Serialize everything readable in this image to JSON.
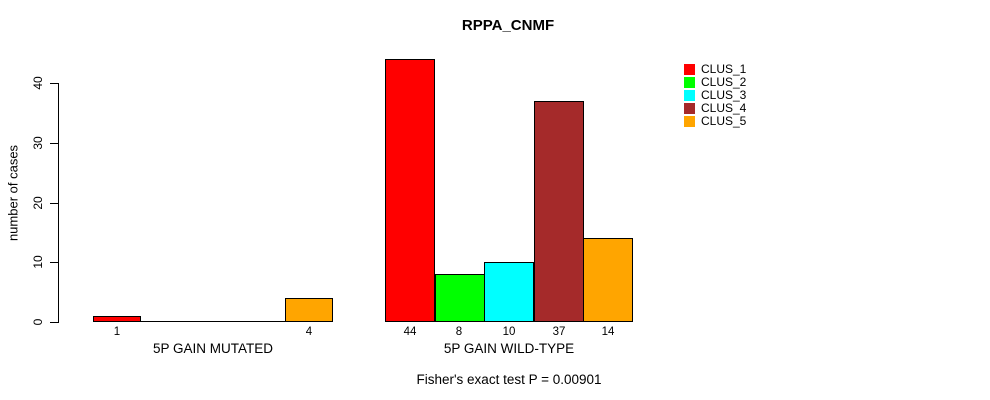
{
  "title": "RPPA_CNMF",
  "caption": "Fisher's exact test P = 0.00901",
  "y_axis": {
    "label": "number of cases",
    "ticks": [
      0,
      10,
      20,
      30,
      40
    ]
  },
  "legend": {
    "entries": [
      {
        "label": "CLUS_1",
        "color": "#FF0000"
      },
      {
        "label": "CLUS_2",
        "color": "#00FF00"
      },
      {
        "label": "CLUS_3",
        "color": "#00FFFF"
      },
      {
        "label": "CLUS_4",
        "color": "#A52A2A"
      },
      {
        "label": "CLUS_5",
        "color": "#FFA500"
      }
    ]
  },
  "chart_data": {
    "type": "bar",
    "title": "RPPA_CNMF",
    "xlabel": "",
    "ylabel": "number of cases",
    "ylim": [
      0,
      44
    ],
    "yticks": [
      0,
      10,
      20,
      30,
      40
    ],
    "grid": false,
    "legend_position": "top-right",
    "categories": [
      "5P GAIN MUTATED",
      "5P GAIN WILD-TYPE"
    ],
    "series": [
      {
        "name": "CLUS_1",
        "color": "#FF0000",
        "values": [
          1,
          44
        ]
      },
      {
        "name": "CLUS_2",
        "color": "#00FF00",
        "values": [
          0,
          8
        ]
      },
      {
        "name": "CLUS_3",
        "color": "#00FFFF",
        "values": [
          0,
          10
        ]
      },
      {
        "name": "CLUS_4",
        "color": "#A52A2A",
        "values": [
          0,
          37
        ]
      },
      {
        "name": "CLUS_5",
        "color": "#FFA500",
        "values": [
          4,
          14
        ]
      }
    ],
    "bar_labels_shown_only_for_nonzero": true,
    "annotation": "Fisher's exact test P = 0.00901"
  }
}
